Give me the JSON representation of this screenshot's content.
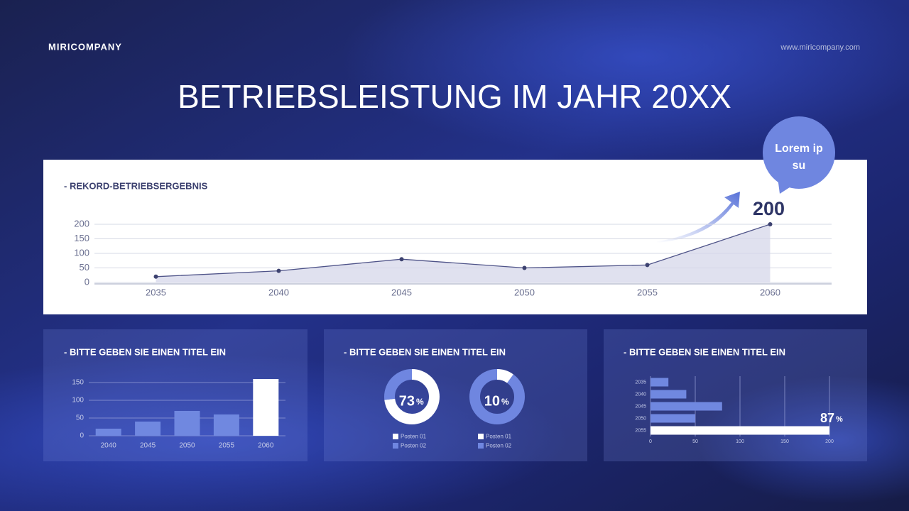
{
  "brand": "MIRICOMPANY",
  "url": "www.miricompany.com",
  "title": "BETRIEBSLEISTUNG IM JAHR 20XX",
  "callout": [
    "Lorem ip",
    "su"
  ],
  "chart_data": [
    {
      "type": "line",
      "title": "- REKORD-BETRIEBSERGEBNIS",
      "categories": [
        "2035",
        "2040",
        "2045",
        "2050",
        "2055",
        "2060"
      ],
      "values": [
        20,
        40,
        80,
        50,
        60,
        200
      ],
      "color": "#4e5388",
      "ylim": [
        0,
        200
      ],
      "yticks": [
        0,
        50,
        100,
        150,
        200
      ],
      "grid": true
    },
    {
      "type": "bar",
      "title": "- BITTE GEBEN SIE EINEN TITEL EIN",
      "categories": [
        "2040",
        "2045",
        "2050",
        "2055",
        "2060"
      ],
      "values": [
        20,
        40,
        70,
        60,
        160
      ],
      "colors": [
        "#7088e0",
        "#7088e0",
        "#7088e0",
        "#7088e0",
        "#ffffff"
      ],
      "ylim": [
        0,
        165
      ],
      "yticks": [
        0,
        50,
        100,
        150
      ],
      "grid": true
    },
    {
      "type": "pie",
      "title": "- BITTE GEBEN SIE EINEN TITEL EIN",
      "categories": [
        "Posten 01",
        "Posten 02"
      ],
      "values": [
        73,
        27
      ],
      "colors": [
        "#ffffff",
        "#6f86e0"
      ],
      "unit": "%"
    },
    {
      "type": "pie",
      "categories": [
        "Posten 01",
        "Posten 02"
      ],
      "values": [
        10,
        90
      ],
      "colors": [
        "#ffffff",
        "#6f86e0"
      ],
      "unit": "%"
    },
    {
      "type": "hbar",
      "title": "- BITTE GEBEN SIE EINEN TITEL EIN",
      "categories": [
        "2035",
        "2040",
        "2045",
        "2050",
        "2055"
      ],
      "values": [
        20,
        40,
        80,
        50,
        200
      ],
      "colors": [
        "#7088e0",
        "#7088e0",
        "#7088e0",
        "#7088e0",
        "#ffffff"
      ],
      "xlim": [
        0,
        200
      ],
      "xticks": [
        0,
        50,
        100,
        150,
        200
      ],
      "grid": true,
      "annotation": 87,
      "unit": "%"
    }
  ]
}
